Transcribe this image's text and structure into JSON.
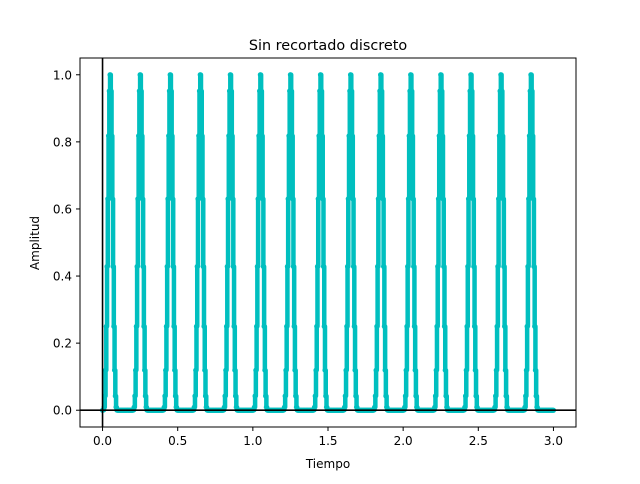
{
  "chart_data": {
    "type": "line",
    "title": "Sin recortado discreto",
    "xlabel": "Tiempo",
    "ylabel": "Amplitud",
    "xlim": [
      -0.15,
      3.15
    ],
    "ylim": [
      -0.05,
      1.05
    ],
    "xticks": [
      0.0,
      0.5,
      1.0,
      1.5,
      2.0,
      2.5,
      3.0
    ],
    "xtick_labels": [
      "0.0",
      "0.5",
      "1.0",
      "1.5",
      "2.0",
      "2.5",
      "3.0"
    ],
    "yticks": [
      0.0,
      0.2,
      0.4,
      0.6,
      0.8,
      1.0
    ],
    "ytick_labels": [
      "0.0",
      "0.2",
      "0.4",
      "0.6",
      "0.8",
      "1.0"
    ],
    "grid": false,
    "legend": "none",
    "reference_lines": {
      "horizontal_y": 0,
      "vertical_x": 0
    },
    "series": [
      {
        "color": "#00bfbf",
        "signal": "max(0, sin(2*pi*5*t))^4",
        "t_start": 0.0,
        "t_end": 3.0,
        "sample_step": 0.005,
        "marker": "circle"
      }
    ]
  },
  "colors": {
    "series": "#00bfbf",
    "axes": "#000000",
    "background": "#ffffff"
  }
}
